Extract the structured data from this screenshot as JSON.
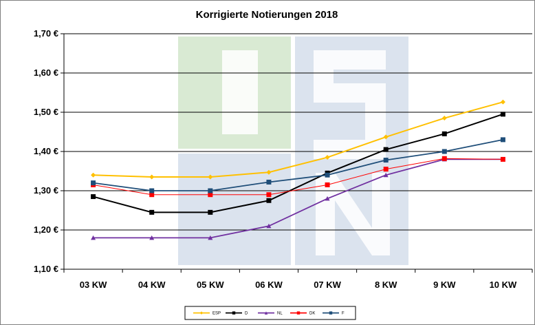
{
  "chart_data": {
    "type": "line",
    "title": "Korrigierte Notierungen 2018",
    "xlabel": "",
    "ylabel": "",
    "categories": [
      "03 KW",
      "04 KW",
      "05 KW",
      "06 KW",
      "07 KW",
      "8 KW",
      "9 KW",
      "10 KW"
    ],
    "ylim": [
      1.1,
      1.7
    ],
    "yticks": [
      "1,10 €",
      "1,20 €",
      "1,30 €",
      "1,40 €",
      "1,50 €",
      "1,60 €",
      "1,70 €"
    ],
    "grid": true,
    "legend_position": "bottom",
    "series": [
      {
        "name": "ESP",
        "color": "#ffc000",
        "marker": "diamond",
        "values": [
          1.34,
          1.335,
          1.335,
          1.347,
          1.385,
          1.437,
          1.485,
          1.526
        ]
      },
      {
        "name": "D",
        "color": "#000000",
        "marker": "square",
        "values": [
          1.285,
          1.245,
          1.245,
          1.275,
          1.345,
          1.405,
          1.445,
          1.495
        ]
      },
      {
        "name": "NL",
        "color": "#7030a0",
        "marker": "triangle",
        "values": [
          1.18,
          1.18,
          1.18,
          1.21,
          1.28,
          1.34,
          1.38,
          1.38
        ]
      },
      {
        "name": "DK",
        "color": "#ff0000",
        "marker": "square",
        "values": [
          1.315,
          1.29,
          1.29,
          1.29,
          1.315,
          1.355,
          1.382,
          1.38
        ]
      },
      {
        "name": "F",
        "color": "#1f4e79",
        "marker": "square",
        "values": [
          1.32,
          1.3,
          1.3,
          1.322,
          1.34,
          1.378,
          1.4,
          1.43
        ]
      }
    ]
  },
  "watermark": {
    "text": "ISN",
    "colors": [
      "#d9ead3",
      "#dbe3ee"
    ]
  }
}
